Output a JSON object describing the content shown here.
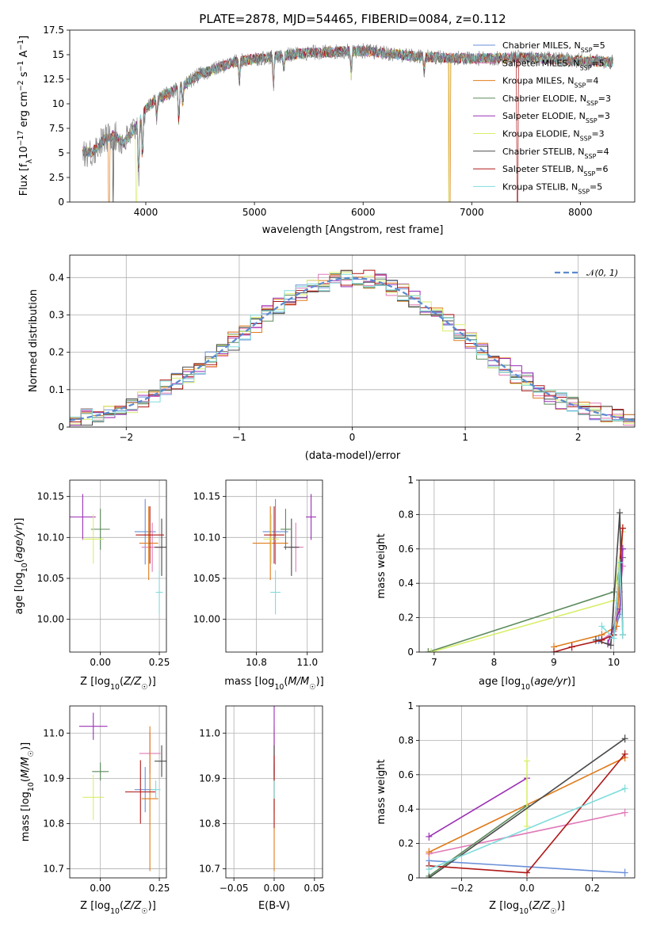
{
  "figure": {
    "title": "PLATE=2878, MJD=54465, FIBERID=0084, z=0.112"
  },
  "colors": {
    "Chabrier MILES": "#6a8fd8",
    "Salpeter MILES": "#e07ab8",
    "Kroupa MILES": "#e07b1a",
    "Chabrier ELODIE": "#5b8a5b",
    "Salpeter ELODIE": "#9b30b5",
    "Kroupa ELODIE": "#d8ee6a",
    "Chabrier STELIB": "#4a4a4a",
    "Salpeter STELIB": "#b01818",
    "Kroupa STELIB": "#7fdcdc",
    "gaussian": "#5a8ad0"
  },
  "chart_data": [
    {
      "id": "spectrum",
      "type": "line",
      "xlabel": "wavelength [Angstrom, rest frame]",
      "ylabel": "Flux [f_λ10^-17 erg cm^-2 s^-1 A^-1]",
      "xlim": [
        3300,
        8500
      ],
      "ylim": [
        0,
        17.5
      ],
      "xticks": [
        4000,
        5000,
        6000,
        7000,
        8000
      ],
      "yticks": [
        0.0,
        2.5,
        5.0,
        7.5,
        10.0,
        12.5,
        15.0,
        17.5
      ],
      "grid": false,
      "legend_position": "right",
      "legend": [
        {
          "label": "Chabrier MILES, N_SSP=5",
          "color_key": "Chabrier MILES"
        },
        {
          "label": "Salpeter MILES, N_SSP=5",
          "color_key": "Salpeter MILES"
        },
        {
          "label": "Kroupa MILES, N_SSP=4",
          "color_key": "Kroupa MILES"
        },
        {
          "label": "Chabrier ELODIE, N_SSP=3",
          "color_key": "Chabrier ELODIE"
        },
        {
          "label": "Salpeter ELODIE, N_SSP=3",
          "color_key": "Salpeter ELODIE"
        },
        {
          "label": "Kroupa ELODIE, N_SSP=3",
          "color_key": "Kroupa ELODIE"
        },
        {
          "label": "Chabrier STELIB, N_SSP=4",
          "color_key": "Chabrier STELIB"
        },
        {
          "label": "Salpeter STELIB, N_SSP=6",
          "color_key": "Salpeter STELIB"
        },
        {
          "label": "Kroupa STELIB, N_SSP=5",
          "color_key": "Kroupa STELIB"
        }
      ],
      "continuum": {
        "x": [
          3420,
          3500,
          3600,
          3700,
          3800,
          3900,
          4000,
          4100,
          4200,
          4300,
          4500,
          4800,
          5000,
          5500,
          6000,
          6500,
          7000,
          7500,
          8000,
          8300
        ],
        "y": [
          5.2,
          5.0,
          6.2,
          6.8,
          6.0,
          7.5,
          9.5,
          10.5,
          11.0,
          11.6,
          13.0,
          14.2,
          14.6,
          15.2,
          15.4,
          14.8,
          14.6,
          14.7,
          14.4,
          14.2
        ]
      },
      "absorption_features": [
        {
          "x": 3934,
          "depth": 5.5
        },
        {
          "x": 3969,
          "depth": 4.5
        },
        {
          "x": 4101,
          "depth": 2.0
        },
        {
          "x": 4304,
          "depth": 3.5
        },
        {
          "x": 4340,
          "depth": 2.0
        },
        {
          "x": 4861,
          "depth": 2.0
        },
        {
          "x": 5175,
          "depth": 3.0
        },
        {
          "x": 5270,
          "depth": 1.5
        },
        {
          "x": 5890,
          "depth": 2.5
        },
        {
          "x": 6563,
          "depth": 1.5
        }
      ],
      "model_gaps": [
        {
          "x": 3660,
          "color_key": "Kroupa MILES"
        },
        {
          "x": 3700,
          "color_key": "Chabrier STELIB"
        },
        {
          "x": 3912,
          "color_key": "Kroupa ELODIE"
        },
        {
          "x": 6790,
          "color_key": "Kroupa ELODIE"
        },
        {
          "x": 6800,
          "color_key": "Kroupa MILES"
        },
        {
          "x": 7420,
          "color_key": "Salpeter STELIB"
        }
      ]
    },
    {
      "id": "residuals",
      "type": "step",
      "xlabel": "(data-model)/error",
      "ylabel": "Normed distribution",
      "xlim": [
        -2.5,
        2.5
      ],
      "ylim": [
        0,
        0.46
      ],
      "xticks": [
        -2,
        -1,
        0,
        1,
        2
      ],
      "yticks": [
        0.0,
        0.1,
        0.2,
        0.3,
        0.4
      ],
      "grid": true,
      "legend_position": "top-right",
      "gaussian_label": "N(0,1)",
      "bin_width": 0.1,
      "series_count": 9
    },
    {
      "id": "age_vs_Z",
      "type": "scatter",
      "xlabel": "Z [log10(Z/Z☉)]",
      "ylabel": "age  [log10(age/yr)]",
      "xlim": [
        -0.13,
        0.28
      ],
      "ylim": [
        9.96,
        10.17
      ],
      "xticks": [
        0.0,
        0.25
      ],
      "xticklabels": [
        "0.00",
        "0.25"
      ],
      "yticks": [
        10.0,
        10.05,
        10.1,
        10.15
      ],
      "yticklabels": [
        "10.00",
        "10.05",
        "10.10",
        "10.15"
      ],
      "grid": true,
      "points": [
        {
          "color_key": "Chabrier MILES",
          "x": 0.19,
          "y": 10.107,
          "xerr": 0.045,
          "yerr": 0.04
        },
        {
          "color_key": "Salpeter MILES",
          "x": 0.22,
          "y": 10.088,
          "xerr": 0.045,
          "yerr": 0.03
        },
        {
          "color_key": "Kroupa MILES",
          "x": 0.205,
          "y": 10.093,
          "xerr": 0.04,
          "yerr": 0.045
        },
        {
          "color_key": "Chabrier ELODIE",
          "x": 0.0,
          "y": 10.11,
          "xerr": 0.04,
          "yerr": 0.025
        },
        {
          "color_key": "Salpeter ELODIE",
          "x": -0.075,
          "y": 10.125,
          "xerr": 0.055,
          "yerr": 0.028
        },
        {
          "color_key": "Kroupa ELODIE",
          "x": -0.03,
          "y": 10.098,
          "xerr": 0.045,
          "yerr": 0.03
        },
        {
          "color_key": "Chabrier STELIB",
          "x": 0.26,
          "y": 10.088,
          "xerr": 0.03,
          "yerr": 0.035
        },
        {
          "color_key": "Salpeter STELIB",
          "x": 0.21,
          "y": 10.103,
          "xerr": 0.06,
          "yerr": 0.035
        },
        {
          "color_key": "Kroupa STELIB",
          "x": 0.25,
          "y": 10.033,
          "xerr": 0.015,
          "yerr": 0.027
        }
      ]
    },
    {
      "id": "age_vs_mass",
      "type": "scatter",
      "xlabel": "mass [log10(M/M☉)]",
      "ylabel": "",
      "xlim": [
        10.68,
        11.06
      ],
      "ylim": [
        9.96,
        10.17
      ],
      "xticks": [
        10.8,
        11.0
      ],
      "xticklabels": [
        "10.8",
        "11.0"
      ],
      "yticks": [
        10.0,
        10.05,
        10.1,
        10.15
      ],
      "yticklabels": [
        "10.00",
        "10.05",
        "10.10",
        "10.15"
      ],
      "grid": true,
      "points": [
        {
          "color_key": "Chabrier MILES",
          "x": 10.875,
          "y": 10.107,
          "xerr": 0.05,
          "yerr": 0.04
        },
        {
          "color_key": "Salpeter MILES",
          "x": 10.955,
          "y": 10.088,
          "xerr": 0.03,
          "yerr": 0.03
        },
        {
          "color_key": "Kroupa MILES",
          "x": 10.855,
          "y": 10.093,
          "xerr": 0.07,
          "yerr": 0.045
        },
        {
          "color_key": "Chabrier ELODIE",
          "x": 10.915,
          "y": 10.11,
          "xerr": 0.02,
          "yerr": 0.025
        },
        {
          "color_key": "Salpeter ELODIE",
          "x": 11.015,
          "y": 10.125,
          "xerr": 0.02,
          "yerr": 0.028
        },
        {
          "color_key": "Kroupa ELODIE",
          "x": 10.858,
          "y": 10.098,
          "xerr": 0.03,
          "yerr": 0.03
        },
        {
          "color_key": "Chabrier STELIB",
          "x": 10.938,
          "y": 10.088,
          "xerr": 0.03,
          "yerr": 0.035
        },
        {
          "color_key": "Salpeter STELIB",
          "x": 10.87,
          "y": 10.103,
          "xerr": 0.04,
          "yerr": 0.035
        },
        {
          "color_key": "Kroupa STELIB",
          "x": 10.875,
          "y": 10.033,
          "xerr": 0.02,
          "yerr": 0.027
        }
      ]
    },
    {
      "id": "weight_vs_age",
      "type": "line",
      "xlabel": "age  [log10(age/yr)]",
      "ylabel": "mass weight",
      "xlim": [
        6.75,
        10.35
      ],
      "ylim": [
        0,
        1.0
      ],
      "xticks": [
        7,
        8,
        9,
        10
      ],
      "yticks": [
        0.0,
        0.2,
        0.4,
        0.6,
        0.8,
        1.0
      ],
      "grid": true,
      "series": [
        {
          "color_key": "Chabrier MILES",
          "x": [
            9.75,
            10.0,
            10.1,
            10.15
          ],
          "y": [
            0.07,
            0.1,
            0.22,
            0.6
          ]
        },
        {
          "color_key": "Salpeter MILES",
          "x": [
            9.8,
            10.0,
            10.1,
            10.15
          ],
          "y": [
            0.07,
            0.12,
            0.35,
            0.5
          ]
        },
        {
          "color_key": "Kroupa MILES",
          "x": [
            9.0,
            9.8,
            10.05,
            10.15
          ],
          "y": [
            0.03,
            0.1,
            0.15,
            0.72
          ]
        },
        {
          "color_key": "Chabrier ELODIE",
          "x": [
            6.9,
            10.0,
            10.15
          ],
          "y": [
            0.0,
            0.35,
            0.55
          ]
        },
        {
          "color_key": "Salpeter ELODIE",
          "x": [
            9.9,
            10.1,
            10.15
          ],
          "y": [
            0.05,
            0.25,
            0.6
          ]
        },
        {
          "color_key": "Kroupa ELODIE",
          "x": [
            6.95,
            10.0,
            10.15
          ],
          "y": [
            0.0,
            0.3,
            0.7
          ]
        },
        {
          "color_key": "Chabrier STELIB",
          "x": [
            9.7,
            9.95,
            10.1,
            10.15
          ],
          "y": [
            0.07,
            0.04,
            0.81,
            0.1
          ]
        },
        {
          "color_key": "Salpeter STELIB",
          "x": [
            9.0,
            9.3,
            9.8,
            10.0,
            10.15
          ],
          "y": [
            0.0,
            0.03,
            0.07,
            0.1,
            0.72
          ]
        },
        {
          "color_key": "Kroupa STELIB",
          "x": [
            9.8,
            10.0,
            10.1,
            10.15
          ],
          "y": [
            0.15,
            0.08,
            0.52,
            0.1
          ]
        }
      ]
    },
    {
      "id": "mass_vs_Z",
      "type": "scatter",
      "xlabel": "Z [log10(Z/Z☉)]",
      "ylabel": "mass [log10(M/M☉)]",
      "xlim": [
        -0.13,
        0.28
      ],
      "ylim": [
        10.68,
        11.06
      ],
      "xticks": [
        0.0,
        0.25
      ],
      "xticklabels": [
        "0.00",
        "0.25"
      ],
      "yticks": [
        10.7,
        10.8,
        10.9,
        11.0
      ],
      "yticklabels": [
        "10.7",
        "10.8",
        "10.9",
        "11.0"
      ],
      "grid": true,
      "points": [
        {
          "color_key": "Chabrier MILES",
          "x": 0.19,
          "y": 10.875,
          "xerr": 0.045,
          "yerr": 0.05
        },
        {
          "color_key": "Salpeter MILES",
          "x": 0.21,
          "y": 10.955,
          "xerr": 0.045,
          "yerr": 0.045
        },
        {
          "color_key": "Kroupa MILES",
          "x": 0.21,
          "y": 10.855,
          "xerr": 0.035,
          "yerr": 0.16
        },
        {
          "color_key": "Chabrier ELODIE",
          "x": 0.0,
          "y": 10.915,
          "xerr": 0.035,
          "yerr": 0.02
        },
        {
          "color_key": "Salpeter ELODIE",
          "x": -0.03,
          "y": 11.015,
          "xerr": 0.06,
          "yerr": 0.03
        },
        {
          "color_key": "Kroupa ELODIE",
          "x": -0.03,
          "y": 10.858,
          "xerr": 0.045,
          "yerr": 0.05
        },
        {
          "color_key": "Chabrier STELIB",
          "x": 0.26,
          "y": 10.938,
          "xerr": 0.03,
          "yerr": 0.035
        },
        {
          "color_key": "Salpeter STELIB",
          "x": 0.17,
          "y": 10.87,
          "xerr": 0.065,
          "yerr": 0.07
        },
        {
          "color_key": "Kroupa STELIB",
          "x": 0.235,
          "y": 10.875,
          "xerr": 0.02,
          "yerr": 0.02
        }
      ]
    },
    {
      "id": "mass_vs_EBV",
      "type": "scatter",
      "xlabel": "E(B-V)",
      "ylabel": "",
      "xlim": [
        -0.06,
        0.06
      ],
      "ylim": [
        10.68,
        11.06
      ],
      "xticks": [
        -0.05,
        0.0,
        0.05
      ],
      "xticklabels": [
        "−0.05",
        "0.00",
        "0.05"
      ],
      "yticks": [
        10.7,
        10.8,
        10.9,
        11.0
      ],
      "yticklabels": [
        "10.7",
        "10.8",
        "10.9",
        "11.0"
      ],
      "grid": true,
      "points": [
        {
          "color_key": "Chabrier MILES",
          "x": 0.0,
          "y": 10.875,
          "xerr": 0.0,
          "yerr": 0.05
        },
        {
          "color_key": "Salpeter MILES",
          "x": 0.0,
          "y": 10.955,
          "xerr": 0.0,
          "yerr": 0.045
        },
        {
          "color_key": "Kroupa MILES",
          "x": 0.0,
          "y": 10.855,
          "xerr": 0.0,
          "yerr": 0.16
        },
        {
          "color_key": "Chabrier ELODIE",
          "x": 0.0,
          "y": 10.915,
          "xerr": 0.0,
          "yerr": 0.02
        },
        {
          "color_key": "Salpeter ELODIE",
          "x": 0.0,
          "y": 11.015,
          "xerr": 0.0,
          "yerr": 0.12
        },
        {
          "color_key": "Kroupa ELODIE",
          "x": 0.0,
          "y": 10.858,
          "xerr": 0.0,
          "yerr": 0.05
        },
        {
          "color_key": "Chabrier STELIB",
          "x": 0.0,
          "y": 10.938,
          "xerr": 0.0,
          "yerr": 0.035
        },
        {
          "color_key": "Salpeter STELIB",
          "x": 0.0,
          "y": 10.87,
          "xerr": 0.0,
          "yerr": 0.08
        },
        {
          "color_key": "Kroupa STELIB",
          "x": 0.0,
          "y": 10.875,
          "xerr": 0.0,
          "yerr": 0.02
        }
      ]
    },
    {
      "id": "weight_vs_Z",
      "type": "line",
      "xlabel": "Z [log10(Z/Z☉)]",
      "ylabel": "mass weight",
      "xlim": [
        -0.33,
        0.33
      ],
      "ylim": [
        0,
        1.0
      ],
      "xticks": [
        -0.2,
        0.0,
        0.2
      ],
      "xticklabels": [
        "−0.2",
        "0.0",
        "0.2"
      ],
      "yticks": [
        0.0,
        0.2,
        0.4,
        0.6,
        0.8,
        1.0
      ],
      "grid": true,
      "series": [
        {
          "color_key": "Chabrier MILES",
          "x": [
            -0.3,
            0.3
          ],
          "y": [
            0.1,
            0.03
          ]
        },
        {
          "color_key": "Salpeter MILES",
          "x": [
            -0.3,
            0.3
          ],
          "y": [
            0.14,
            0.38
          ]
        },
        {
          "color_key": "Kroupa MILES",
          "x": [
            -0.3,
            0.3
          ],
          "y": [
            0.15,
            0.7
          ]
        },
        {
          "color_key": "Chabrier ELODIE",
          "x": [
            -0.3,
            0.0
          ],
          "y": [
            0.01,
            0.42
          ]
        },
        {
          "color_key": "Salpeter ELODIE",
          "x": [
            -0.3,
            0.0
          ],
          "y": [
            0.24,
            0.58
          ]
        },
        {
          "color_key": "Kroupa ELODIE",
          "x": [
            0.0,
            0.0
          ],
          "y": [
            0.3,
            0.68
          ]
        },
        {
          "color_key": "Chabrier STELIB",
          "x": [
            -0.3,
            0.3
          ],
          "y": [
            0.0,
            0.81
          ]
        },
        {
          "color_key": "Salpeter STELIB",
          "x": [
            -0.3,
            0.0,
            0.3
          ],
          "y": [
            0.07,
            0.03,
            0.72
          ]
        },
        {
          "color_key": "Kroupa STELIB",
          "x": [
            -0.3,
            0.3
          ],
          "y": [
            0.05,
            0.52
          ]
        }
      ]
    }
  ]
}
